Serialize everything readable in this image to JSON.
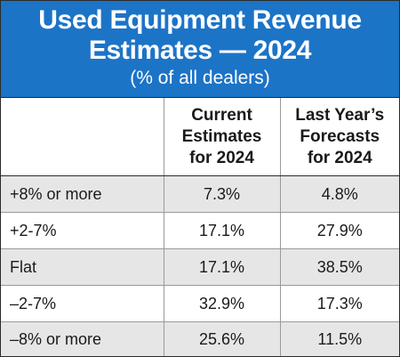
{
  "chart_data": {
    "type": "table",
    "title_lines": [
      "Used Equipment Revenue",
      "Estimates — 2024"
    ],
    "subtitle": "(% of all dealers)",
    "columns": [
      [
        "Current",
        "Estimates",
        "for 2024"
      ],
      [
        "Last Year’s",
        "Forecasts",
        "for 2024"
      ]
    ],
    "rows": [
      {
        "label": "+8% or more",
        "values": [
          "7.3%",
          "4.8%"
        ]
      },
      {
        "label": "+2-7%",
        "values": [
          "17.1%",
          "27.9%"
        ]
      },
      {
        "label": "Flat",
        "values": [
          "17.1%",
          "38.5%"
        ]
      },
      {
        "label": "–2-7%",
        "values": [
          "32.9%",
          "17.3%"
        ]
      },
      {
        "label": "–8% or more",
        "values": [
          "25.6%",
          "11.5%"
        ]
      }
    ]
  },
  "colors": {
    "header_background": "#1c74c7",
    "header_text": "#ffffff",
    "shaded_row": "#e6e6e6"
  }
}
